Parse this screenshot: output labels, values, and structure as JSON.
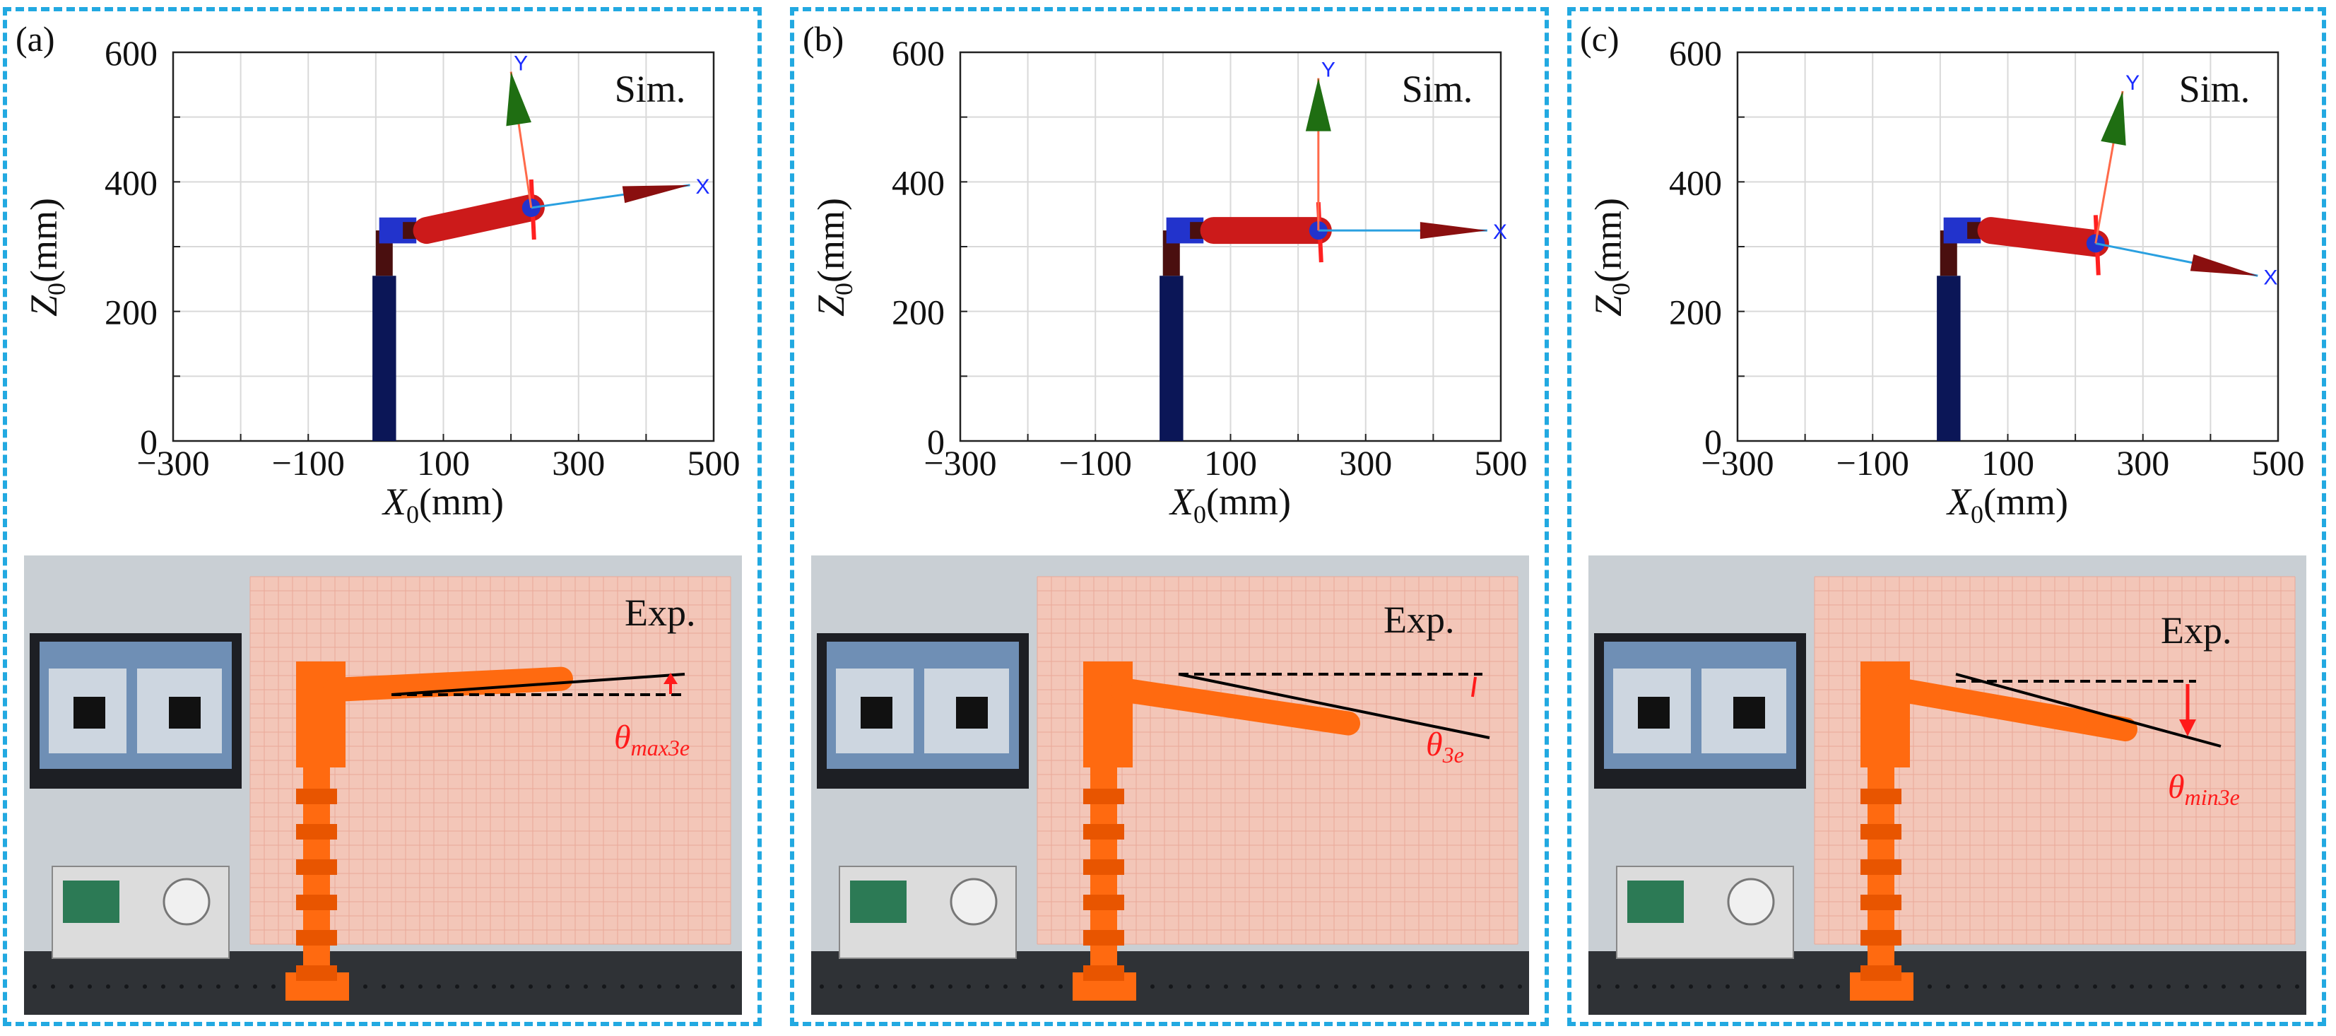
{
  "colors": {
    "frame": "#22a9e1",
    "base_link": "#0b1657",
    "elbow_link": "#4a0f0f",
    "arm_link": "#cc1a1a",
    "joint": "#2233cc",
    "y_axis_arrow": "#1f6e12",
    "x_axis_line": "#2aa0e0",
    "annotation_red": "#ff1a1a",
    "grid": "#d9d9d9"
  },
  "chart_data": [
    {
      "type": "scatter",
      "panel_label": "(a)",
      "annotation": "Sim.",
      "xlabel": "X0(mm)",
      "ylabel": "Z0(mm)",
      "xlim": [
        -300,
        500
      ],
      "ylim": [
        0,
        600
      ],
      "x_ticks": [
        "−300",
        "−100",
        "100",
        "300",
        "500"
      ],
      "y_ticks": [
        "0",
        "200",
        "400",
        "600"
      ],
      "grid": true,
      "frame_axis_labels": {
        "x": "X",
        "y": "Y"
      },
      "arm_pose": {
        "tip": [
          230,
          360
        ],
        "x_axis_end": [
          465,
          395
        ],
        "y_axis_end": [
          200,
          570
        ]
      },
      "photo": {
        "label": "Exp.",
        "angle_symbol": "θ",
        "angle_subscript": "max3e",
        "tilt": "up"
      }
    },
    {
      "type": "scatter",
      "panel_label": "(b)",
      "annotation": "Sim.",
      "xlabel": "X0(mm)",
      "ylabel": "Z0(mm)",
      "xlim": [
        -300,
        500
      ],
      "ylim": [
        0,
        600
      ],
      "x_ticks": [
        "−300",
        "−100",
        "100",
        "300",
        "500"
      ],
      "y_ticks": [
        "0",
        "200",
        "400",
        "600"
      ],
      "grid": true,
      "frame_axis_labels": {
        "x": "X",
        "y": "Y"
      },
      "arm_pose": {
        "tip": [
          230,
          325
        ],
        "x_axis_end": [
          480,
          325
        ],
        "y_axis_end": [
          230,
          560
        ]
      },
      "photo": {
        "label": "Exp.",
        "angle_symbol": "θ",
        "angle_subscript": "3e",
        "tilt": "down-small"
      }
    },
    {
      "type": "scatter",
      "panel_label": "(c)",
      "annotation": "Sim.",
      "xlabel": "X0(mm)",
      "ylabel": "Z0(mm)",
      "xlim": [
        -300,
        500
      ],
      "ylim": [
        0,
        600
      ],
      "x_ticks": [
        "−300",
        "−100",
        "100",
        "300",
        "500"
      ],
      "y_ticks": [
        "0",
        "200",
        "400",
        "600"
      ],
      "grid": true,
      "frame_axis_labels": {
        "x": "X",
        "y": "Y"
      },
      "arm_pose": {
        "tip": [
          230,
          305
        ],
        "x_axis_end": [
          470,
          255
        ],
        "y_axis_end": [
          270,
          540
        ]
      },
      "photo": {
        "label": "Exp.",
        "angle_symbol": "θ",
        "angle_subscript": "min3e",
        "tilt": "down"
      }
    }
  ]
}
